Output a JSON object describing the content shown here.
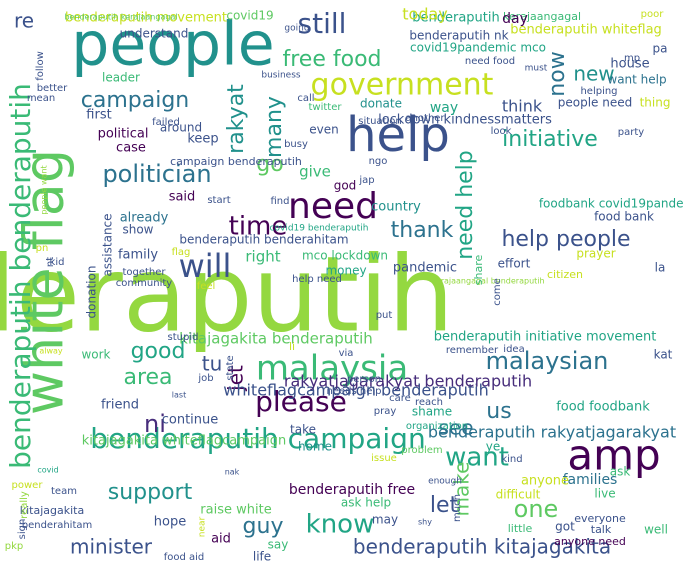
{
  "colors": {
    "lime": "#94d840",
    "green": "#5ec962",
    "sea": "#3aba76",
    "teal": "#21a585",
    "cyan": "#21918c",
    "blue": "#2c728e",
    "navy": "#3b528b",
    "indigo": "#472d7b",
    "purple": "#440154",
    "yellow": "#c7e020"
  },
  "words": [
    {
      "text": "benderaputih",
      "color": "lime"
    },
    {
      "text": "people",
      "color": "cyan"
    },
    {
      "text": "white flag",
      "color": "green"
    },
    {
      "text": "help",
      "color": "navy"
    },
    {
      "text": "government",
      "color": "yellow"
    },
    {
      "text": "amp",
      "color": "purple"
    },
    {
      "text": "benderaputih benderaputih",
      "color": "sea"
    },
    {
      "text": "malaysia",
      "color": "sea"
    },
    {
      "text": "benderaputih campaign",
      "color": "teal"
    },
    {
      "text": "need",
      "color": "purple"
    },
    {
      "text": "please",
      "color": "purple"
    },
    {
      "text": "will",
      "color": "navy"
    },
    {
      "text": "benderaputih kitajagakita",
      "color": "navy"
    },
    {
      "text": "politician",
      "color": "blue"
    },
    {
      "text": "campaign",
      "color": "blue"
    },
    {
      "text": "initiative",
      "color": "teal"
    },
    {
      "text": "help people",
      "color": "navy"
    },
    {
      "text": "malaysian",
      "color": "blue"
    },
    {
      "text": "minister",
      "color": "navy"
    },
    {
      "text": "know",
      "color": "teal"
    },
    {
      "text": "want",
      "color": "teal"
    },
    {
      "text": "support",
      "color": "cyan"
    },
    {
      "text": "still",
      "color": "navy"
    },
    {
      "text": "free food",
      "color": "sea"
    },
    {
      "text": "time",
      "color": "purple"
    },
    {
      "text": "thank",
      "color": "blue"
    },
    {
      "text": "area",
      "color": "sea"
    },
    {
      "text": "good",
      "color": "teal"
    },
    {
      "text": "one",
      "color": "green"
    },
    {
      "text": "guy",
      "color": "blue"
    },
    {
      "text": "new",
      "color": "cyan"
    },
    {
      "text": "now",
      "color": "blue"
    },
    {
      "text": "re",
      "color": "navy"
    },
    {
      "text": "rakyat",
      "color": "cyan"
    },
    {
      "text": "many",
      "color": "cyan"
    },
    {
      "text": "go",
      "color": "green"
    },
    {
      "text": "tu",
      "color": "navy"
    },
    {
      "text": "ni",
      "color": "indigo"
    },
    {
      "text": "jet",
      "color": "purple"
    },
    {
      "text": "us",
      "color": "blue"
    },
    {
      "text": "see",
      "color": "blue"
    },
    {
      "text": "let",
      "color": "navy"
    },
    {
      "text": "make",
      "color": "green"
    },
    {
      "text": "need help",
      "color": "teal"
    },
    {
      "text": "whiteflagcampaign benderaputih",
      "color": "navy"
    },
    {
      "text": "rakyatjagarakyat benderaputih",
      "color": "indigo"
    },
    {
      "text": "benderaputih rakyatjagarakyat",
      "color": "blue"
    },
    {
      "text": "kitajagakita benderaputih",
      "color": "green"
    },
    {
      "text": "benderaputih whiteflag",
      "color": "yellow"
    },
    {
      "text": "benderaputih free",
      "color": "purple"
    },
    {
      "text": "benderaputih movement",
      "color": "yellow"
    },
    {
      "text": "benderaputih initiative movement",
      "color": "teal"
    },
    {
      "text": "kitajagakita whiteflagcampaign",
      "color": "green"
    },
    {
      "text": "benderaputih",
      "color": "teal"
    },
    {
      "text": "covid19pandemic mco",
      "color": "teal"
    },
    {
      "text": "foodbank covid19pandemic",
      "color": "teal"
    },
    {
      "text": "lockdown kindnessmatters",
      "color": "navy"
    },
    {
      "text": "food bank",
      "color": "navy"
    },
    {
      "text": "food foodbank",
      "color": "teal"
    },
    {
      "text": "benderaputih benderahitam",
      "color": "navy"
    },
    {
      "text": "mco lockdown",
      "color": "sea"
    },
    {
      "text": "campaign benderaputih",
      "color": "navy"
    },
    {
      "text": "benderaputih kerajaangagal",
      "color": "green"
    },
    {
      "text": "kerajaangagal benderaputih",
      "color": "lime"
    },
    {
      "text": "covid19 benderaputih",
      "color": "teal"
    },
    {
      "text": "benderaputih nk",
      "color": "navy"
    },
    {
      "text": "kerajaangagal",
      "color": "sea"
    },
    {
      "text": "today",
      "color": "yellow"
    },
    {
      "text": "day",
      "color": "purple"
    },
    {
      "text": "covid19",
      "color": "green"
    },
    {
      "text": "understand",
      "color": "navy"
    },
    {
      "text": "going",
      "color": "navy"
    },
    {
      "text": "leader",
      "color": "sea"
    },
    {
      "text": "business",
      "color": "navy"
    },
    {
      "text": "house",
      "color": "navy"
    },
    {
      "text": "want help",
      "color": "blue"
    },
    {
      "text": "first",
      "color": "navy"
    },
    {
      "text": "political",
      "color": "purple"
    },
    {
      "text": "case",
      "color": "purple"
    },
    {
      "text": "keep",
      "color": "navy"
    },
    {
      "text": "around",
      "color": "navy"
    },
    {
      "text": "think",
      "color": "navy"
    },
    {
      "text": "way",
      "color": "teal"
    },
    {
      "text": "people need",
      "color": "navy"
    },
    {
      "text": "thing",
      "color": "yellow"
    },
    {
      "text": "even",
      "color": "navy"
    },
    {
      "text": "donate",
      "color": "cyan"
    },
    {
      "text": "give",
      "color": "sea"
    },
    {
      "text": "god",
      "color": "purple"
    },
    {
      "text": "said",
      "color": "purple"
    },
    {
      "text": "country",
      "color": "cyan"
    },
    {
      "text": "already",
      "color": "blue"
    },
    {
      "text": "show",
      "color": "navy"
    },
    {
      "text": "family",
      "color": "navy"
    },
    {
      "text": "right",
      "color": "sea"
    },
    {
      "text": "money",
      "color": "teal"
    },
    {
      "text": "pandemic",
      "color": "navy"
    },
    {
      "text": "effort",
      "color": "navy"
    },
    {
      "text": "prayer",
      "color": "yellow"
    },
    {
      "text": "assistance",
      "color": "navy"
    },
    {
      "text": "donation",
      "color": "navy"
    },
    {
      "text": "work",
      "color": "sea"
    },
    {
      "text": "friend",
      "color": "navy"
    },
    {
      "text": "continue",
      "color": "navy"
    },
    {
      "text": "take",
      "color": "navy"
    },
    {
      "text": "home",
      "color": "cyan"
    },
    {
      "text": "shame",
      "color": "teal"
    },
    {
      "text": "families",
      "color": "blue"
    },
    {
      "text": "anyone",
      "color": "yellow"
    },
    {
      "text": "live",
      "color": "sea"
    },
    {
      "text": "ask",
      "color": "sea"
    },
    {
      "text": "ask help",
      "color": "sea"
    },
    {
      "text": "raise white",
      "color": "green"
    },
    {
      "text": "hope",
      "color": "navy"
    },
    {
      "text": "aid",
      "color": "purple"
    },
    {
      "text": "say",
      "color": "sea"
    },
    {
      "text": "may",
      "color": "navy"
    },
    {
      "text": "life",
      "color": "navy"
    },
    {
      "text": "got",
      "color": "navy"
    },
    {
      "text": "well",
      "color": "sea"
    },
    {
      "text": "little",
      "color": "sea"
    },
    {
      "text": "everyone",
      "color": "navy"
    },
    {
      "text": "talk",
      "color": "navy"
    },
    {
      "text": "anyone need",
      "color": "purple"
    },
    {
      "text": "kat",
      "color": "navy"
    },
    {
      "text": "ye",
      "color": "teal"
    },
    {
      "text": "food aid",
      "color": "navy"
    },
    {
      "text": "kitajagakita",
      "color": "navy"
    },
    {
      "text": "benderahitam",
      "color": "navy"
    },
    {
      "text": "team",
      "color": "navy"
    },
    {
      "text": "power",
      "color": "yellow"
    },
    {
      "text": "covid",
      "color": "teal"
    },
    {
      "text": "really",
      "color": "lime"
    },
    {
      "text": "sign",
      "color": "navy"
    },
    {
      "text": "pkp",
      "color": "lime"
    },
    {
      "text": "difficult",
      "color": "yellow"
    },
    {
      "text": "enough",
      "color": "navy"
    },
    {
      "text": "much",
      "color": "navy"
    },
    {
      "text": "kind",
      "color": "navy"
    },
    {
      "text": "problem",
      "color": "green"
    },
    {
      "text": "issue",
      "color": "yellow"
    },
    {
      "text": "organization",
      "color": "teal"
    },
    {
      "text": "pray",
      "color": "navy"
    },
    {
      "text": "reach",
      "color": "navy"
    },
    {
      "text": "care",
      "color": "navy"
    },
    {
      "text": "needs help",
      "color": "navy"
    },
    {
      "text": "person",
      "color": "navy"
    },
    {
      "text": "job",
      "color": "navy"
    },
    {
      "text": "state",
      "color": "navy"
    },
    {
      "text": "via",
      "color": "navy"
    },
    {
      "text": "remember",
      "color": "navy"
    },
    {
      "text": "idea",
      "color": "navy"
    },
    {
      "text": "stupid",
      "color": "navy"
    },
    {
      "text": "put",
      "color": "navy"
    },
    {
      "text": "help need",
      "color": "navy"
    },
    {
      "text": "citizen",
      "color": "yellow"
    },
    {
      "text": "come",
      "color": "navy"
    },
    {
      "text": "share",
      "color": "sea"
    },
    {
      "text": "la",
      "color": "navy"
    },
    {
      "text": "together",
      "color": "navy"
    },
    {
      "text": "community",
      "color": "navy"
    },
    {
      "text": "feel",
      "color": "yellow"
    },
    {
      "text": "kid",
      "color": "navy"
    },
    {
      "text": "nt",
      "color": "navy"
    },
    {
      "text": "pn",
      "color": "yellow"
    },
    {
      "text": "flag",
      "color": "yellow"
    },
    {
      "text": "start",
      "color": "navy"
    },
    {
      "text": "find",
      "color": "navy"
    },
    {
      "text": "jap",
      "color": "navy"
    },
    {
      "text": "ngo",
      "color": "navy"
    },
    {
      "text": "busy",
      "color": "navy"
    },
    {
      "text": "failed",
      "color": "navy"
    },
    {
      "text": "twitter",
      "color": "sea"
    },
    {
      "text": "call",
      "color": "navy"
    },
    {
      "text": "situation",
      "color": "navy"
    },
    {
      "text": "another",
      "color": "navy"
    },
    {
      "text": "look",
      "color": "navy"
    },
    {
      "text": "party",
      "color": "navy"
    },
    {
      "text": "helping",
      "color": "navy"
    },
    {
      "text": "need food",
      "color": "navy"
    },
    {
      "text": "must",
      "color": "navy"
    },
    {
      "text": "mp",
      "color": "navy"
    },
    {
      "text": "pa",
      "color": "navy"
    },
    {
      "text": "poor",
      "color": "yellow"
    },
    {
      "text": "follow",
      "color": "navy"
    },
    {
      "text": "mean",
      "color": "navy"
    },
    {
      "text": "better",
      "color": "navy"
    },
    {
      "text": "people want",
      "color": "lime"
    },
    {
      "text": "alway",
      "color": "yellow"
    },
    {
      "text": "nak",
      "color": "navy"
    },
    {
      "text": "shy",
      "color": "navy"
    },
    {
      "text": "near",
      "color": "yellow"
    },
    {
      "text": "last",
      "color": "navy"
    },
    {
      "text": "li",
      "color": "yellow"
    },
    {
      "text": "go",
      "color": "yellow"
    }
  ]
}
